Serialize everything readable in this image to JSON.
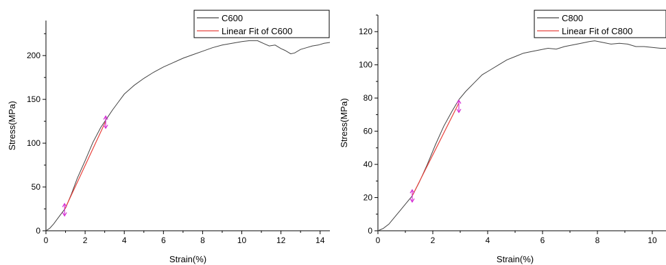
{
  "chart_data": [
    {
      "type": "line",
      "xlabel": "Strain(%)",
      "ylabel": "Stress(MPa)",
      "xlim": [
        0,
        14.5
      ],
      "ylim": [
        0,
        240
      ],
      "xticks": [
        0,
        2,
        4,
        6,
        8,
        10,
        12,
        14
      ],
      "yticks": [
        0,
        50,
        100,
        150,
        200
      ],
      "legend_position": "top-right",
      "series": [
        {
          "name": "C600",
          "color": "#404040",
          "x": [
            0,
            0.2,
            0.4,
            0.6,
            0.8,
            1.0,
            1.3,
            1.6,
            2.0,
            2.4,
            2.8,
            3.1,
            3.4,
            3.7,
            4.0,
            4.5,
            5.0,
            5.5,
            6.0,
            6.5,
            7.0,
            7.5,
            8.0,
            8.5,
            9.0,
            9.5,
            10.0,
            10.4,
            10.8,
            11.1,
            11.4,
            11.7,
            12.0,
            12.2,
            12.5,
            12.7,
            13.0,
            13.3,
            13.6,
            13.9,
            14.2,
            14.5
          ],
          "y": [
            0,
            3,
            8,
            14,
            20,
            26,
            42,
            60,
            80,
            101,
            118,
            128,
            138,
            147,
            156,
            166,
            174,
            181,
            187,
            192,
            197,
            201,
            205,
            209,
            212,
            214,
            216,
            217,
            217,
            214,
            211,
            212,
            208,
            206,
            202,
            203,
            207,
            209,
            211,
            212,
            214,
            215
          ]
        },
        {
          "name": "Linear Fit of C600",
          "color": "#e8403a",
          "x": [
            0.95,
            3.05
          ],
          "y": [
            24,
            125
          ]
        }
      ],
      "markers": [
        {
          "x": 0.95,
          "y": 24
        },
        {
          "x": 3.05,
          "y": 124
        }
      ]
    },
    {
      "type": "line",
      "xlabel": "Strain(%)",
      "ylabel": "Stress(MPa)",
      "xlim": [
        0,
        10.5
      ],
      "ylim": [
        0,
        130
      ],
      "xticks": [
        0,
        2,
        4,
        6,
        8,
        10
      ],
      "yticks": [
        0,
        20,
        40,
        60,
        80,
        100,
        120
      ],
      "legend_position": "top-right",
      "series": [
        {
          "name": "C800",
          "color": "#404040",
          "x": [
            0,
            0.2,
            0.4,
            0.6,
            0.8,
            1.0,
            1.25,
            1.5,
            1.8,
            2.1,
            2.4,
            2.7,
            2.95,
            3.2,
            3.5,
            3.8,
            4.1,
            4.4,
            4.7,
            5.0,
            5.3,
            5.6,
            5.9,
            6.2,
            6.5,
            6.8,
            7.1,
            7.4,
            7.7,
            7.9,
            8.2,
            8.5,
            8.8,
            9.1,
            9.4,
            9.7,
            10.0,
            10.3,
            10.5
          ],
          "y": [
            0,
            1.5,
            4,
            8,
            12,
            16,
            21,
            29,
            40,
            52,
            63,
            72,
            79,
            84,
            89,
            94,
            97,
            100,
            103,
            105,
            107,
            108,
            109,
            110,
            109.5,
            111,
            112,
            113,
            114,
            114.5,
            113.5,
            112.5,
            113,
            112.5,
            111,
            111,
            110.5,
            110,
            110
          ]
        },
        {
          "name": "Linear Fit of C800",
          "color": "#e8403a",
          "x": [
            1.25,
            2.95
          ],
          "y": [
            21,
            77
          ]
        }
      ],
      "markers": [
        {
          "x": 1.25,
          "y": 21
        },
        {
          "x": 2.95,
          "y": 75
        }
      ]
    }
  ]
}
